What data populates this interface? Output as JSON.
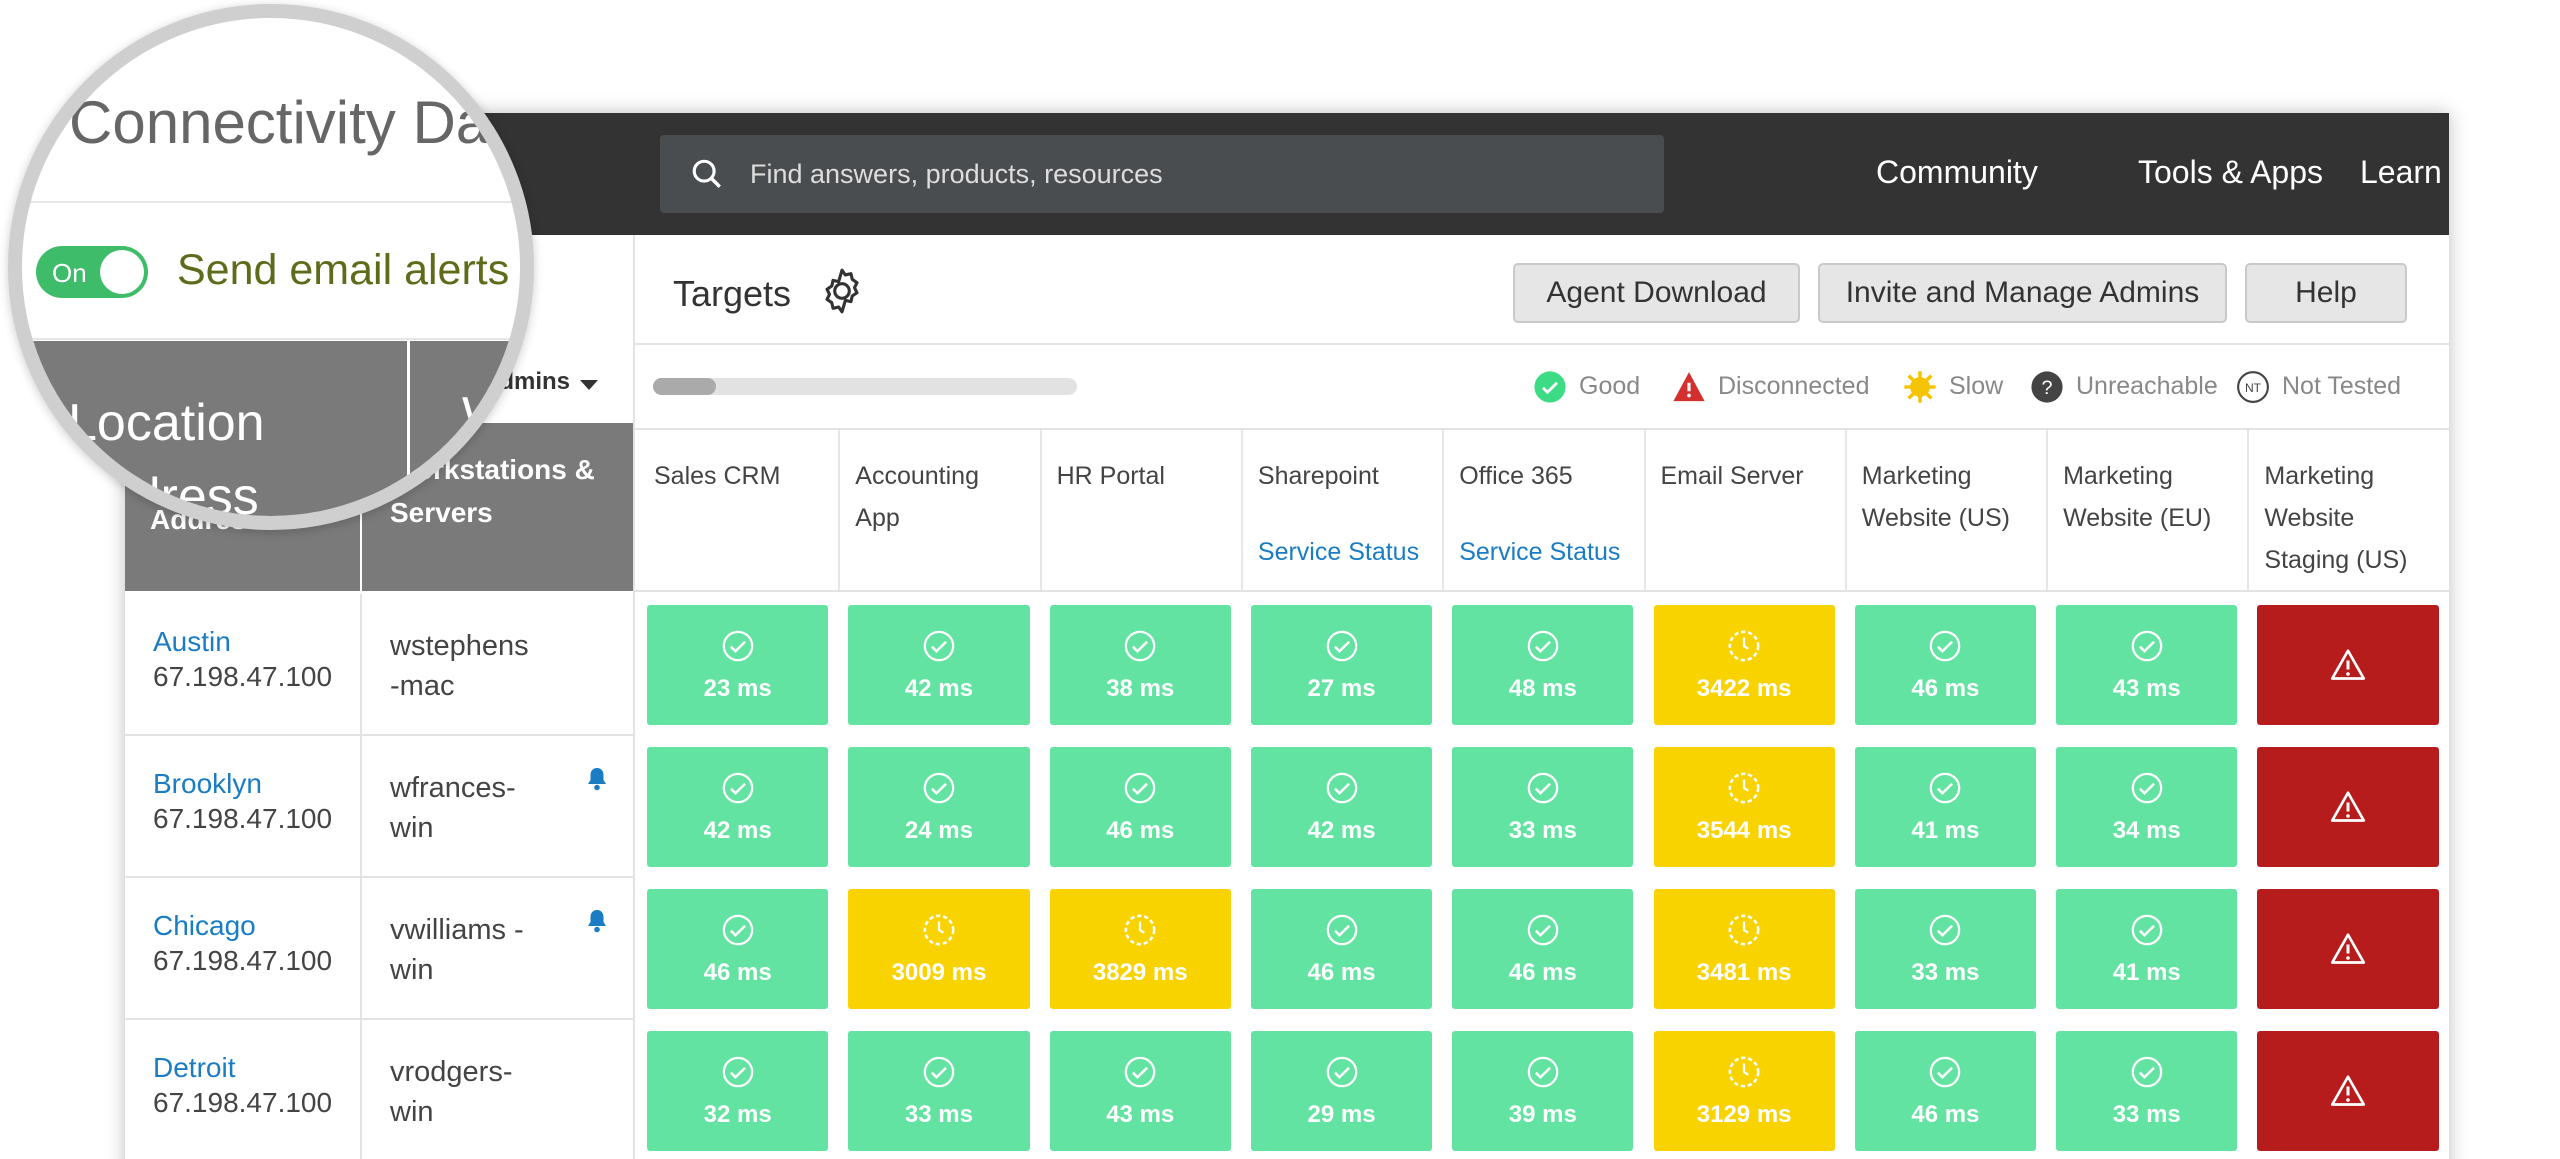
{
  "magnifier": {
    "title": "Connectivity Da",
    "toggle": "On",
    "alert": "Send email alerts",
    "location_header": "Location Address",
    "workstation_header": "Workstations"
  },
  "nav": {
    "search": "Find answers, products, resources",
    "links": [
      "Community",
      "Tools & Apps",
      "Learn"
    ]
  },
  "toolbar": {
    "label": "Targets",
    "buttons": [
      "Agent Download",
      "Invite and Manage Admins",
      "Help"
    ],
    "filter": "Admins"
  },
  "legend": [
    "Good",
    "Disconnected",
    "Slow",
    "Unreachable",
    "Not Tested"
  ],
  "table": {
    "headers": [
      "Location Address",
      "Workstations & Servers"
    ],
    "columns": [
      {
        "name": "Sales CRM"
      },
      {
        "name": "Accounting App"
      },
      {
        "name": "HR Portal"
      },
      {
        "name": "Sharepoint",
        "link": "Service Status"
      },
      {
        "name": "Office 365",
        "link": "Service Status"
      },
      {
        "name": "Email Server"
      },
      {
        "name": "Marketing Website (US)"
      },
      {
        "name": "Marketing Website (EU)"
      },
      {
        "name": "Marketing Website Staging (US)"
      }
    ],
    "rows": [
      {
        "location": "Austin",
        "ip": "67.198.47.100",
        "host": "wstephens -mac",
        "bell": false,
        "cells": [
          [
            "good",
            "23 ms"
          ],
          [
            "good",
            "42 ms"
          ],
          [
            "good",
            "38 ms"
          ],
          [
            "good",
            "27 ms"
          ],
          [
            "good",
            "48 ms"
          ],
          [
            "slow",
            "3422 ms"
          ],
          [
            "good",
            "46 ms"
          ],
          [
            "good",
            "43 ms"
          ],
          [
            "disconnected"
          ]
        ]
      },
      {
        "location": "Brooklyn",
        "ip": "67.198.47.100",
        "host": "wfrances-win",
        "bell": true,
        "cells": [
          [
            "good",
            "42 ms"
          ],
          [
            "good",
            "24 ms"
          ],
          [
            "good",
            "46 ms"
          ],
          [
            "good",
            "42 ms"
          ],
          [
            "good",
            "33 ms"
          ],
          [
            "slow",
            "3544 ms"
          ],
          [
            "good",
            "41 ms"
          ],
          [
            "good",
            "34 ms"
          ],
          [
            "disconnected"
          ]
        ]
      },
      {
        "location": "Chicago",
        "ip": "67.198.47.100",
        "host": "vwilliams -win",
        "bell": true,
        "cells": [
          [
            "good",
            "46 ms"
          ],
          [
            "slow",
            "3009 ms"
          ],
          [
            "slow",
            "3829 ms"
          ],
          [
            "good",
            "46 ms"
          ],
          [
            "good",
            "46 ms"
          ],
          [
            "slow",
            "3481 ms"
          ],
          [
            "good",
            "33 ms"
          ],
          [
            "good",
            "41 ms"
          ],
          [
            "disconnected"
          ]
        ]
      },
      {
        "location": "Detroit",
        "ip": "67.198.47.100",
        "host": "vrodgers-win",
        "bell": false,
        "cells": [
          [
            "good",
            "32 ms"
          ],
          [
            "good",
            "33 ms"
          ],
          [
            "good",
            "43 ms"
          ],
          [
            "good",
            "29 ms"
          ],
          [
            "good",
            "39 ms"
          ],
          [
            "slow",
            "3129 ms"
          ],
          [
            "good",
            "46 ms"
          ],
          [
            "good",
            "33 ms"
          ],
          [
            "disconnected"
          ]
        ]
      }
    ]
  }
}
